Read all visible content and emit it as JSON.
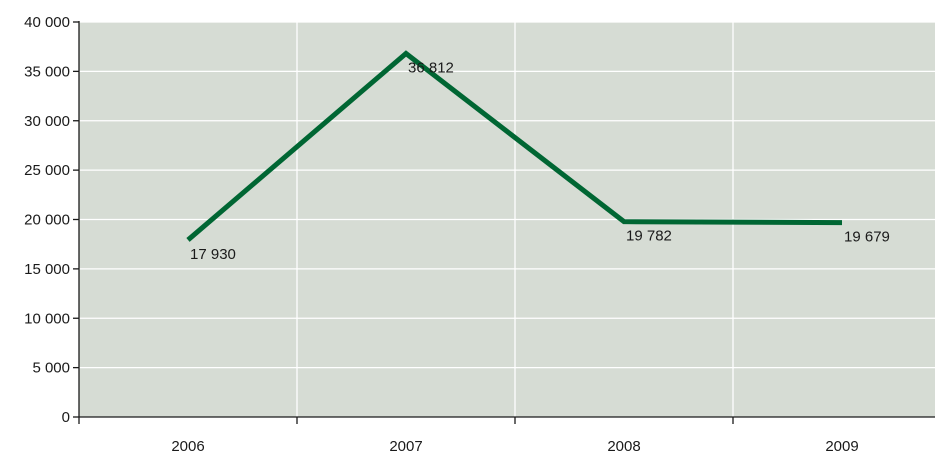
{
  "chart_data": {
    "type": "line",
    "title": "",
    "xlabel": "",
    "ylabel": "",
    "categories": [
      "2006",
      "2007",
      "2008",
      "2009"
    ],
    "series": [
      {
        "values": [
          17930,
          36812,
          19782,
          19679
        ],
        "labels": [
          "17 930",
          "36 812",
          "19 782",
          "19 679"
        ],
        "color": "#006633"
      }
    ],
    "ylim": [
      0,
      40000
    ],
    "yticks": [
      0,
      5000,
      10000,
      15000,
      20000,
      25000,
      30000,
      35000,
      40000
    ],
    "ytick_labels": [
      "0",
      "5 000",
      "10 000",
      "15 000",
      "20 000",
      "25 000",
      "30 000",
      "35 000",
      "40 000"
    ],
    "grid": true,
    "legend": "none",
    "colors": {
      "plot_background": "#d6dcd4",
      "gridlines": "#ffffff"
    }
  }
}
